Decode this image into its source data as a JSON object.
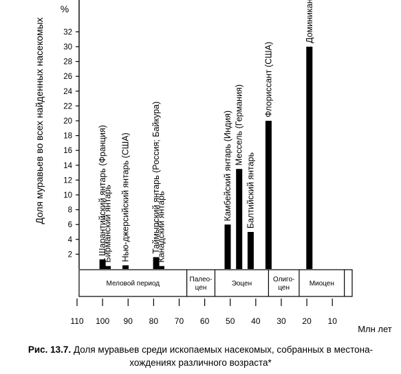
{
  "chart_data": {
    "type": "bar",
    "ylabel": "Доля муравьев во всех найденных насекомых",
    "yunit": "%",
    "xunit": "Млн лет",
    "ylim": [
      0,
      34
    ],
    "xlim": [
      110,
      0
    ],
    "xaxis_reversed": true,
    "yticks": [
      2,
      4,
      6,
      8,
      10,
      12,
      14,
      16,
      18,
      20,
      22,
      24,
      26,
      28,
      30,
      32
    ],
    "xticks": [
      110,
      100,
      90,
      80,
      70,
      60,
      50,
      40,
      30,
      20,
      10
    ],
    "series": [
      {
        "values": [
          {
            "label": "Шарантийский янтарь (Франция)",
            "age_mya": 100,
            "percent": 1.3
          },
          {
            "label": "Бирманский янтарь",
            "age_mya": 98,
            "percent": 0.4
          },
          {
            "label": "Нью-джерсийский янтарь (США)",
            "age_mya": 91,
            "percent": 0.5
          },
          {
            "label": "Таймырский янтарь (Россия; Байкура)",
            "age_mya": 79,
            "percent": 1.6
          },
          {
            "label": "Канадский янтарь",
            "age_mya": 77,
            "percent": 0.4
          },
          {
            "label": "Камбейский янтарь (Индия)",
            "age_mya": 51,
            "percent": 6
          },
          {
            "label": "Мессель (Германия)",
            "age_mya": 46.5,
            "percent": 13.5
          },
          {
            "label": "Балтийский янтарь",
            "age_mya": 42,
            "percent": 5
          },
          {
            "label": "Флориссант (США)",
            "age_mya": 35,
            "percent": 20
          },
          {
            "label": "Доминиканский янтарь",
            "age_mya": 19,
            "percent": 30
          }
        ]
      }
    ],
    "periods": [
      {
        "name": "Меловой период",
        "from": 110,
        "to": 67
      },
      {
        "name": "Палео-\nцен",
        "from": 67,
        "to": 56
      },
      {
        "name": "Эоцен",
        "from": 56,
        "to": 35
      },
      {
        "name": "Олиго-\nцен",
        "from": 35,
        "to": 23
      },
      {
        "name": "Миоцен",
        "from": 23,
        "to": 5.3
      },
      {
        "name": "",
        "from": 5.3,
        "to": 0
      }
    ]
  },
  "caption": {
    "label": "Рис. 13.7.",
    "text_line1": " Доля муравьев среди ископаемых насекомых, собранных в местона-",
    "text_line2": "хождениях различного возраста*"
  }
}
